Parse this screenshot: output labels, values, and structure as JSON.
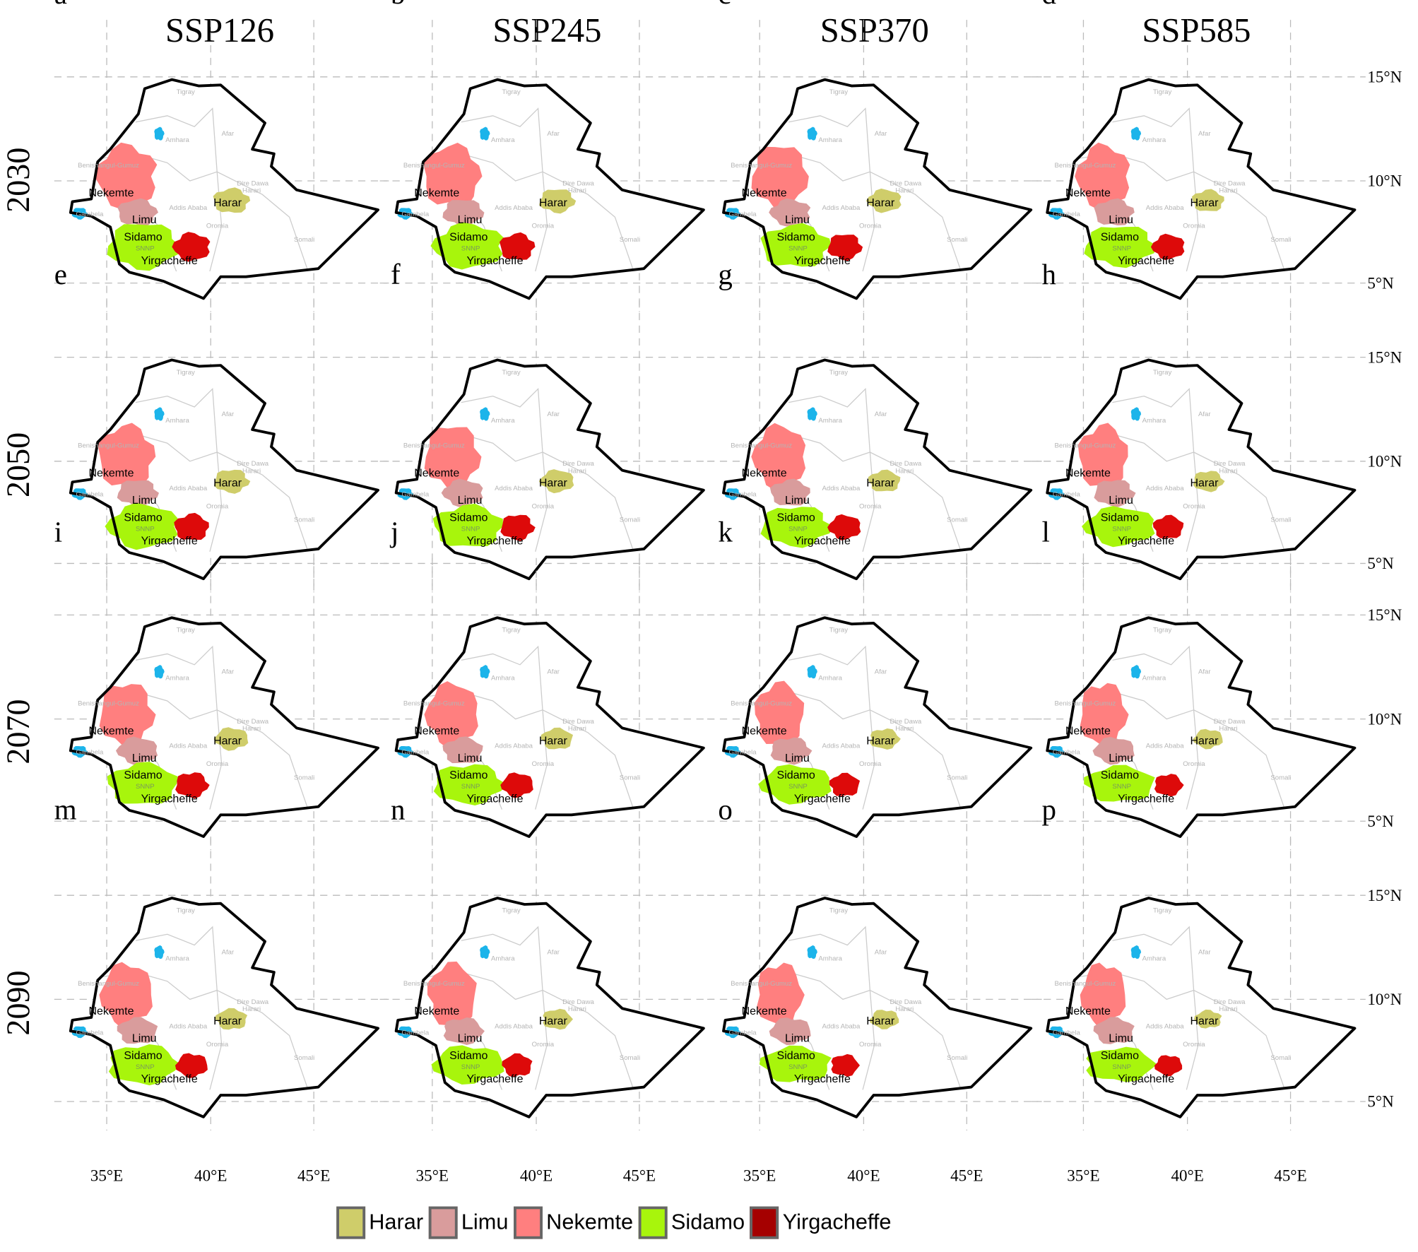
{
  "columns": [
    "SSP126",
    "SSP245",
    "SSP370",
    "SSP585"
  ],
  "rows": [
    "2030",
    "2050",
    "2070",
    "2090"
  ],
  "panel_letters": [
    "a",
    "b",
    "c",
    "d",
    "e",
    "f",
    "g",
    "h",
    "i",
    "j",
    "k",
    "l",
    "m",
    "n",
    "o",
    "p"
  ],
  "region_labels": {
    "nekemte": "Nekemte",
    "limu": "Limu",
    "sidamo": "Sidamo",
    "harar": "Harar",
    "yirgacheffe": "Yirgacheffe"
  },
  "admin_labels": {
    "tigray": "Tigray",
    "amhara": "Amhara",
    "afar": "Afar",
    "benishangul": "Benishangul-Gumuz",
    "addis": "Addis Ababa",
    "diredawa": "Dire Dawa",
    "harari": "Harari",
    "gambela": "Gambela",
    "oromia": "Oromia",
    "somali": "Somali",
    "snnp": "SNNP"
  },
  "lat_labels": [
    "15°N",
    "10°N",
    "5°N"
  ],
  "lon_labels": [
    "35°E",
    "40°E",
    "45°E"
  ],
  "legend": [
    {
      "label": "Harar",
      "color": "#cfcd6a"
    },
    {
      "label": "Limu",
      "color": "#d99c9c"
    },
    {
      "label": "Nekemte",
      "color": "#ff7f7f"
    },
    {
      "label": "Sidamo",
      "color": "#a8f50c"
    },
    {
      "label": "Yirgacheffe",
      "color": "#a50000"
    }
  ],
  "colors": {
    "yirgacheffe_map": "#dd0a0a",
    "water": "#1cb4ea",
    "outline": "#000000",
    "admin": "#cccccc",
    "grid": "#bbbbbb"
  }
}
